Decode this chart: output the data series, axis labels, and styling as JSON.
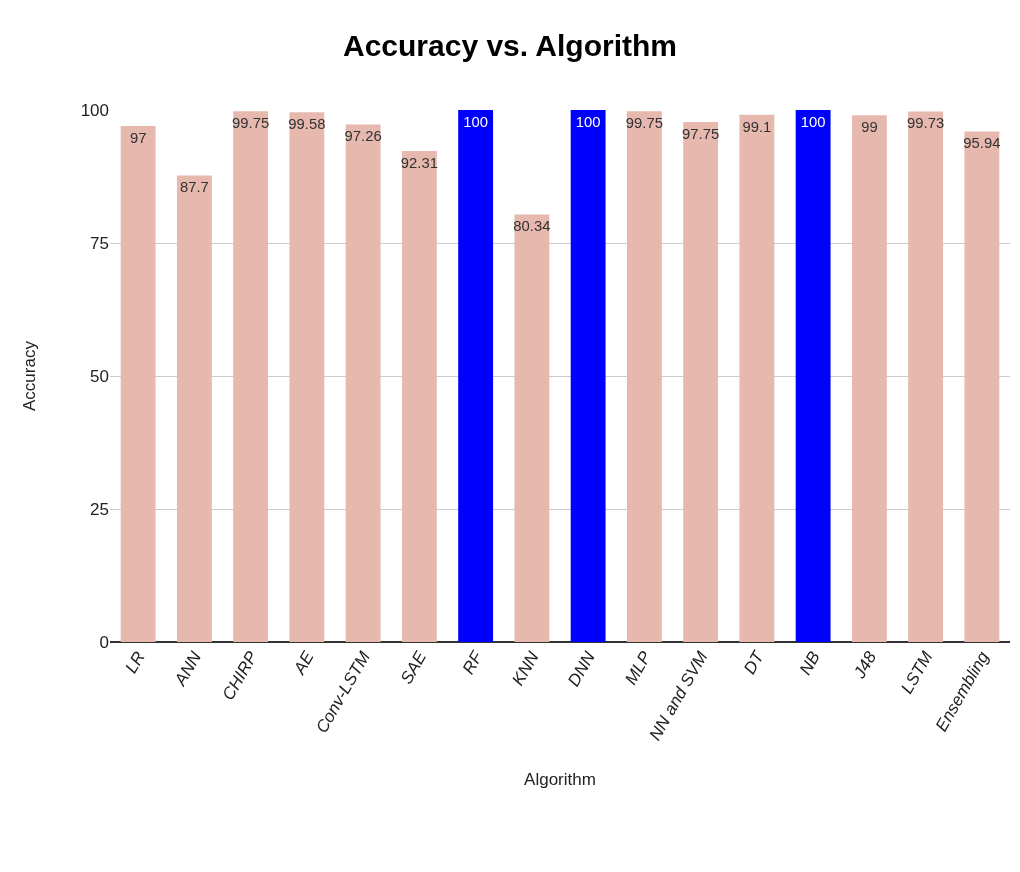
{
  "chart_data": {
    "type": "bar",
    "title": "Accuracy vs. Algorithm",
    "xlabel": "Algorithm",
    "ylabel": "Accuracy",
    "categories": [
      "LR",
      "ANN",
      "CHIRP",
      "AE",
      "Conv-LSTM",
      "SAE",
      "RF",
      "KNN",
      "DNN",
      "MLP",
      "NN and SVM",
      "DT",
      "NB",
      "J48",
      "LSTM",
      "Ensembling"
    ],
    "values": [
      97,
      87.7,
      99.75,
      99.58,
      97.26,
      92.31,
      100,
      80.34,
      100,
      99.75,
      97.75,
      99.1,
      100,
      99,
      99.73,
      95.94
    ],
    "colors": [
      "#e6b8ae",
      "#e6b8ae",
      "#e6b8ae",
      "#e6b8ae",
      "#e6b8ae",
      "#e6b8ae",
      "#0000ff",
      "#e6b8ae",
      "#0000ff",
      "#e6b8ae",
      "#e6b8ae",
      "#e6b8ae",
      "#0000ff",
      "#e6b8ae",
      "#e6b8ae",
      "#e6b8ae"
    ],
    "ylim": [
      0,
      100
    ],
    "yticks": [
      0,
      25,
      50,
      75,
      100
    ],
    "grid": "y",
    "data_labels": true
  }
}
